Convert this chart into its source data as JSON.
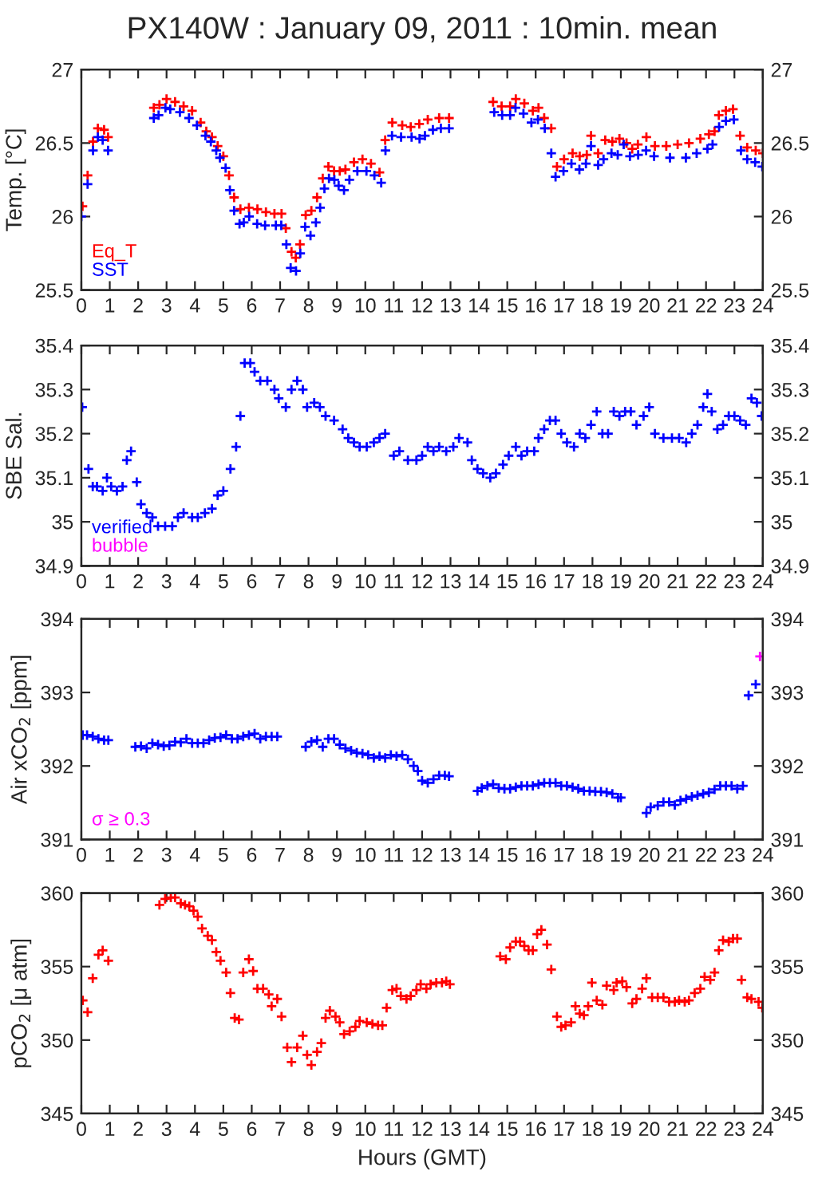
{
  "chart_data": [
    {
      "type": "scatter",
      "title": "PX140W : January 09, 2011 : 10min. mean",
      "ylabel": "Temp. [°C]",
      "xlim": [
        0,
        24
      ],
      "xticks": [
        0,
        1,
        2,
        3,
        4,
        5,
        6,
        7,
        8,
        9,
        10,
        11,
        12,
        13,
        14,
        15,
        16,
        17,
        18,
        19,
        20,
        21,
        22,
        23,
        24
      ],
      "ylim": [
        25.5,
        27
      ],
      "yticks": [
        25.5,
        26,
        26.5,
        27
      ],
      "y2lim": [
        25.5,
        27
      ],
      "y2ticks": [
        25.5,
        26,
        26.5,
        27
      ],
      "grid": false,
      "legend": "bottom left",
      "marker": "cross",
      "series": [
        {
          "name": "Eq_T",
          "color": "#ff0000",
          "x": [
            0.04,
            0.22,
            0.41,
            0.58,
            0.8,
            0.94,
            2.55,
            2.75,
            3.0,
            3.3,
            3.6,
            3.9,
            4.2,
            4.4,
            4.6,
            4.8,
            5.0,
            5.2,
            5.38,
            5.6,
            5.9,
            6.2,
            6.5,
            6.8,
            7.05,
            7.2,
            7.4,
            7.55,
            7.7,
            7.9,
            8.1,
            8.3,
            8.5,
            8.7,
            8.9,
            9.1,
            9.3,
            9.6,
            9.9,
            10.2,
            10.5,
            10.7,
            10.95,
            11.3,
            11.6,
            11.9,
            12.2,
            12.6,
            12.95,
            14.5,
            14.8,
            15.1,
            15.3,
            15.6,
            15.9,
            16.1,
            16.3,
            16.55,
            16.75,
            17.0,
            17.3,
            17.55,
            17.8,
            17.95,
            18.2,
            18.45,
            18.7,
            18.95,
            19.2,
            19.4,
            19.6,
            19.9,
            20.2,
            20.6,
            21.0,
            21.4,
            21.8,
            22.1,
            22.3,
            22.45,
            22.7,
            22.95,
            23.2,
            23.45,
            23.75,
            24.0
          ],
          "values": [
            26.07,
            26.28,
            26.51,
            26.6,
            26.59,
            26.54,
            26.74,
            26.76,
            26.8,
            26.78,
            26.75,
            26.72,
            26.64,
            26.58,
            26.54,
            26.48,
            26.41,
            26.28,
            26.13,
            26.05,
            26.06,
            26.05,
            26.03,
            26.02,
            26.02,
            25.92,
            25.76,
            25.72,
            25.81,
            26.01,
            26.04,
            26.13,
            26.26,
            26.34,
            26.31,
            26.31,
            26.32,
            26.37,
            26.39,
            26.36,
            26.3,
            26.52,
            26.64,
            26.62,
            26.61,
            26.63,
            26.66,
            26.67,
            26.67,
            26.78,
            26.75,
            26.75,
            26.8,
            26.77,
            26.72,
            26.74,
            26.67,
            26.6,
            26.34,
            26.39,
            26.43,
            26.41,
            26.42,
            26.55,
            26.43,
            26.52,
            26.51,
            26.53,
            26.5,
            26.46,
            26.49,
            26.54,
            26.48,
            26.48,
            26.49,
            26.5,
            26.53,
            26.56,
            26.58,
            26.69,
            26.72,
            26.73,
            26.55,
            26.47,
            26.45,
            26.43
          ]
        },
        {
          "name": "SST",
          "color": "#0000ff",
          "x": [
            0.0,
            0.22,
            0.41,
            0.58,
            0.75,
            0.94,
            2.55,
            2.72,
            2.96,
            3.13,
            3.47,
            3.79,
            4.07,
            4.37,
            4.56,
            4.75,
            4.88,
            5.08,
            5.23,
            5.38,
            5.57,
            5.72,
            5.91,
            6.19,
            6.47,
            6.85,
            7.04,
            7.22,
            7.37,
            7.56,
            7.71,
            7.88,
            8.07,
            8.26,
            8.41,
            8.56,
            8.72,
            8.91,
            9.06,
            9.25,
            9.44,
            9.72,
            10.04,
            10.32,
            10.56,
            10.71,
            10.94,
            11.26,
            11.63,
            11.91,
            12.1,
            12.38,
            12.66,
            12.95,
            14.54,
            14.82,
            15.1,
            15.29,
            15.57,
            15.85,
            16.08,
            16.32,
            16.55,
            16.7,
            16.98,
            17.26,
            17.54,
            17.77,
            17.95,
            18.2,
            18.39,
            18.67,
            18.89,
            19.1,
            19.32,
            19.61,
            19.89,
            20.17,
            20.73,
            21.29,
            21.67,
            22.05,
            22.23,
            22.46,
            22.7,
            22.98,
            23.23,
            23.45,
            23.73,
            23.98
          ],
          "values": [
            26.0,
            26.22,
            26.45,
            26.54,
            26.52,
            26.45,
            26.67,
            26.69,
            26.74,
            26.73,
            26.71,
            26.67,
            26.62,
            26.55,
            26.51,
            26.45,
            26.4,
            26.33,
            26.18,
            26.04,
            25.95,
            25.96,
            26.0,
            25.95,
            25.94,
            25.94,
            25.94,
            25.81,
            25.65,
            25.63,
            25.75,
            25.93,
            25.87,
            25.96,
            26.06,
            26.19,
            26.26,
            26.25,
            26.21,
            26.18,
            26.25,
            26.31,
            26.31,
            26.28,
            26.23,
            26.45,
            26.55,
            26.54,
            26.54,
            26.53,
            26.55,
            26.59,
            26.6,
            26.6,
            26.71,
            26.69,
            26.69,
            26.74,
            26.7,
            26.64,
            26.66,
            26.6,
            26.43,
            26.27,
            26.31,
            26.36,
            26.32,
            26.36,
            26.48,
            26.35,
            26.39,
            26.43,
            26.42,
            26.49,
            26.41,
            26.42,
            26.45,
            26.41,
            26.4,
            26.4,
            26.43,
            26.46,
            26.49,
            26.61,
            26.65,
            26.66,
            26.45,
            26.39,
            26.37,
            26.34
          ]
        }
      ]
    },
    {
      "type": "scatter",
      "ylabel": "SBE Sal.",
      "xlim": [
        0,
        24
      ],
      "xticks": [
        0,
        1,
        2,
        3,
        4,
        5,
        6,
        7,
        8,
        9,
        10,
        11,
        12,
        13,
        14,
        15,
        16,
        17,
        18,
        19,
        20,
        21,
        22,
        23,
        24
      ],
      "ylim": [
        34.9,
        35.4
      ],
      "yticks": [
        34.9,
        35,
        35.1,
        35.2,
        35.3,
        35.4
      ],
      "y2lim": [
        34.9,
        35.4
      ],
      "y2ticks": [
        34.9,
        35,
        35.1,
        35.2,
        35.3,
        35.4
      ],
      "grid": false,
      "legend": "bottom left",
      "marker": "cross",
      "series": [
        {
          "name": "verified",
          "color": "#0000ff",
          "x": [
            0.03,
            0.25,
            0.4,
            0.55,
            0.75,
            0.9,
            1.05,
            1.25,
            1.45,
            1.6,
            1.75,
            1.95,
            2.1,
            2.3,
            2.5,
            2.7,
            2.95,
            3.2,
            3.4,
            3.6,
            3.9,
            4.1,
            4.35,
            4.6,
            4.8,
            5.0,
            5.25,
            5.45,
            5.6,
            5.75,
            5.95,
            6.1,
            6.3,
            6.55,
            6.8,
            6.95,
            7.2,
            7.4,
            7.6,
            7.8,
            7.95,
            8.2,
            8.4,
            8.6,
            8.9,
            9.2,
            9.4,
            9.6,
            9.8,
            10.05,
            10.3,
            10.5,
            10.7,
            11.0,
            11.2,
            11.5,
            11.8,
            12.0,
            12.2,
            12.4,
            12.6,
            12.85,
            13.1,
            13.3,
            13.6,
            13.75,
            13.95,
            14.15,
            14.4,
            14.6,
            14.85,
            15.05,
            15.3,
            15.5,
            15.7,
            15.95,
            16.1,
            16.3,
            16.5,
            16.7,
            16.9,
            17.1,
            17.35,
            17.55,
            17.75,
            17.95,
            18.15,
            18.35,
            18.55,
            18.75,
            18.95,
            19.15,
            19.35,
            19.55,
            19.8,
            20.0,
            20.2,
            20.5,
            20.8,
            21.05,
            21.3,
            21.5,
            21.7,
            21.9,
            22.05,
            22.2,
            22.4,
            22.6,
            22.8,
            23.0,
            23.2,
            23.4,
            23.6,
            23.79,
            23.96
          ],
          "values": [
            35.26,
            35.12,
            35.08,
            35.08,
            35.07,
            35.1,
            35.08,
            35.07,
            35.08,
            35.14,
            35.16,
            35.09,
            35.04,
            35.02,
            35.01,
            34.99,
            34.99,
            34.99,
            35.01,
            35.02,
            35.01,
            35.01,
            35.02,
            35.03,
            35.06,
            35.07,
            35.12,
            35.17,
            35.24,
            35.36,
            35.36,
            35.34,
            35.32,
            35.32,
            35.3,
            35.28,
            35.26,
            35.3,
            35.32,
            35.3,
            35.26,
            35.27,
            35.26,
            35.24,
            35.23,
            35.21,
            35.19,
            35.18,
            35.17,
            35.17,
            35.18,
            35.19,
            35.2,
            35.15,
            35.16,
            35.14,
            35.14,
            35.15,
            35.17,
            35.16,
            35.17,
            35.16,
            35.17,
            35.19,
            35.18,
            35.14,
            35.12,
            35.11,
            35.1,
            35.11,
            35.13,
            35.15,
            35.17,
            35.15,
            35.16,
            35.16,
            35.19,
            35.21,
            35.23,
            35.23,
            35.2,
            35.18,
            35.17,
            35.2,
            35.19,
            35.22,
            35.25,
            35.2,
            35.2,
            35.25,
            35.24,
            35.25,
            35.25,
            35.22,
            35.24,
            35.26,
            35.2,
            35.19,
            35.19,
            35.19,
            35.18,
            35.2,
            35.22,
            35.26,
            35.29,
            35.25,
            35.21,
            35.22,
            35.24,
            35.24,
            35.23,
            35.22,
            35.28,
            35.27,
            35.24
          ]
        },
        {
          "name": "bubble",
          "color": "#ff00ff"
        }
      ]
    },
    {
      "type": "scatter",
      "ylabel": "Air xCO$_{2}$ [ppm]",
      "xlim": [
        0,
        24
      ],
      "xticks": [
        0,
        1,
        2,
        3,
        4,
        5,
        6,
        7,
        8,
        9,
        10,
        11,
        12,
        13,
        14,
        15,
        16,
        17,
        18,
        19,
        20,
        21,
        22,
        23,
        24
      ],
      "ylim": [
        391,
        394
      ],
      "yticks": [
        391,
        392,
        393,
        394
      ],
      "y2lim": [
        391,
        394
      ],
      "y2ticks": [
        391,
        392,
        393,
        394
      ],
      "grid": false,
      "legend": "bottom left",
      "marker": "cross",
      "series": [
        {
          "color": "#0000ff",
          "x": [
            0.05,
            0.2,
            0.4,
            0.6,
            0.8,
            0.95,
            1.9,
            2.1,
            2.3,
            2.5,
            2.7,
            2.9,
            3.1,
            3.3,
            3.5,
            3.7,
            3.9,
            4.1,
            4.3,
            4.5,
            4.7,
            4.9,
            5.1,
            5.3,
            5.5,
            5.7,
            5.9,
            6.1,
            6.3,
            6.5,
            6.7,
            6.9,
            7.9,
            8.1,
            8.3,
            8.5,
            8.7,
            8.9,
            9.1,
            9.3,
            9.5,
            9.7,
            9.9,
            10.1,
            10.3,
            10.5,
            10.7,
            10.9,
            11.1,
            11.3,
            11.5,
            11.7,
            11.85,
            12.0,
            12.2,
            12.4,
            12.6,
            12.8,
            12.95,
            13.95,
            14.1,
            14.3,
            14.5,
            14.7,
            14.9,
            15.1,
            15.3,
            15.5,
            15.7,
            15.9,
            16.1,
            16.3,
            16.5,
            16.7,
            16.9,
            17.1,
            17.3,
            17.5,
            17.7,
            17.9,
            18.1,
            18.3,
            18.5,
            18.7,
            18.9,
            19.0,
            19.9,
            20.05,
            20.3,
            20.5,
            20.7,
            20.9,
            21.1,
            21.3,
            21.5,
            21.7,
            21.9,
            22.1,
            22.3,
            22.5,
            22.7,
            22.9,
            23.1,
            23.3,
            23.5,
            23.75
          ],
          "values": [
            392.42,
            392.42,
            392.4,
            392.37,
            392.35,
            392.35,
            392.26,
            392.27,
            392.24,
            392.31,
            392.29,
            392.27,
            392.28,
            392.33,
            392.32,
            392.37,
            392.31,
            392.31,
            392.31,
            392.35,
            392.38,
            392.39,
            392.42,
            392.37,
            392.37,
            392.4,
            392.42,
            392.44,
            392.37,
            392.4,
            392.4,
            392.4,
            392.26,
            392.33,
            392.35,
            392.26,
            392.37,
            392.37,
            392.29,
            392.24,
            392.21,
            392.18,
            392.17,
            392.15,
            392.11,
            392.13,
            392.11,
            392.15,
            392.13,
            392.15,
            392.09,
            392.0,
            391.93,
            391.8,
            391.77,
            391.82,
            391.87,
            391.87,
            391.86,
            391.66,
            391.7,
            391.73,
            391.75,
            391.7,
            391.69,
            391.69,
            391.71,
            391.73,
            391.73,
            391.73,
            391.75,
            391.77,
            391.77,
            391.77,
            391.73,
            391.73,
            391.71,
            391.69,
            391.66,
            391.66,
            391.65,
            391.65,
            391.64,
            391.62,
            391.57,
            391.57,
            391.36,
            391.44,
            391.46,
            391.51,
            391.51,
            391.47,
            391.53,
            391.55,
            391.58,
            391.6,
            391.62,
            391.64,
            391.68,
            391.73,
            391.73,
            391.73,
            391.69,
            391.73,
            392.96,
            393.11
          ]
        },
        {
          "name": "σ ≥ 0.3",
          "color": "#ff00ff",
          "x": [
            23.9
          ],
          "values": [
            393.49
          ]
        }
      ]
    },
    {
      "type": "scatter",
      "ylabel": "pCO$_{2}$ [μ atm]",
      "xlabel": "Hours (GMT)",
      "xlim": [
        0,
        24
      ],
      "xticks": [
        0,
        1,
        2,
        3,
        4,
        5,
        6,
        7,
        8,
        9,
        10,
        11,
        12,
        13,
        14,
        15,
        16,
        17,
        18,
        19,
        20,
        21,
        22,
        23,
        24
      ],
      "ylim": [
        345,
        360
      ],
      "yticks": [
        345,
        350,
        355,
        360
      ],
      "y2lim": [
        345,
        360
      ],
      "y2ticks": [
        345,
        350,
        355,
        360
      ],
      "grid": false,
      "marker": "cross",
      "series": [
        {
          "color": "#ff0000",
          "x": [
            0.05,
            0.22,
            0.4,
            0.6,
            0.75,
            0.95,
            2.75,
            2.95,
            3.15,
            3.3,
            3.5,
            3.65,
            3.8,
            3.95,
            4.1,
            4.25,
            4.45,
            4.6,
            4.75,
            4.9,
            5.1,
            5.25,
            5.4,
            5.55,
            5.7,
            5.9,
            6.05,
            6.2,
            6.4,
            6.6,
            6.7,
            6.9,
            7.05,
            7.25,
            7.4,
            7.6,
            7.8,
            7.95,
            8.1,
            8.3,
            8.45,
            8.6,
            8.75,
            8.95,
            9.1,
            9.25,
            9.45,
            9.65,
            9.8,
            10.05,
            10.25,
            10.45,
            10.6,
            10.75,
            10.95,
            11.1,
            11.25,
            11.45,
            11.6,
            11.8,
            11.95,
            12.15,
            12.3,
            12.5,
            12.7,
            12.85,
            12.98,
            14.75,
            14.95,
            15.1,
            15.3,
            15.45,
            15.6,
            15.75,
            15.9,
            16.05,
            16.2,
            16.4,
            16.55,
            16.75,
            16.9,
            17.05,
            17.25,
            17.4,
            17.55,
            17.7,
            17.85,
            17.98,
            18.15,
            18.35,
            18.5,
            18.75,
            18.85,
            19.05,
            19.2,
            19.4,
            19.55,
            19.75,
            19.9,
            20.1,
            20.3,
            20.5,
            20.7,
            20.9,
            21.05,
            21.25,
            21.4,
            21.6,
            21.8,
            21.95,
            22.15,
            22.3,
            22.45,
            22.6,
            22.8,
            22.95,
            23.1,
            23.25,
            23.45,
            23.6,
            23.85,
            23.98
          ],
          "values": [
            352.7,
            351.9,
            354.2,
            355.8,
            356.1,
            355.4,
            359.2,
            359.6,
            359.7,
            359.7,
            359.3,
            359.2,
            359.1,
            358.8,
            358.4,
            357.6,
            357.1,
            356.8,
            356.0,
            355.4,
            354.6,
            353.2,
            351.5,
            351.4,
            354.6,
            355.5,
            354.7,
            353.5,
            353.5,
            353.1,
            352.3,
            352.8,
            351.6,
            349.5,
            348.5,
            349.5,
            350.3,
            349.0,
            348.3,
            349.2,
            349.8,
            351.5,
            352.0,
            351.6,
            351.2,
            350.4,
            350.6,
            350.9,
            351.3,
            351.2,
            351.1,
            351.0,
            351.0,
            352.2,
            353.4,
            353.5,
            353.0,
            352.8,
            353.0,
            353.4,
            353.8,
            353.5,
            353.8,
            353.9,
            353.9,
            354.0,
            353.8,
            355.7,
            355.5,
            356.3,
            356.7,
            356.7,
            356.4,
            356.1,
            356.1,
            357.2,
            357.5,
            356.5,
            354.8,
            351.6,
            350.9,
            351.0,
            351.2,
            352.3,
            351.8,
            351.7,
            352.3,
            353.9,
            352.7,
            352.4,
            353.7,
            353.4,
            353.9,
            354.0,
            353.6,
            352.5,
            352.8,
            353.5,
            354.2,
            352.9,
            352.9,
            352.9,
            352.6,
            352.6,
            352.7,
            352.6,
            352.7,
            353.2,
            353.5,
            354.3,
            354.1,
            354.6,
            356.1,
            356.8,
            356.7,
            356.9,
            356.9,
            354.1,
            352.9,
            352.8,
            352.6,
            352.2
          ]
        }
      ]
    }
  ]
}
